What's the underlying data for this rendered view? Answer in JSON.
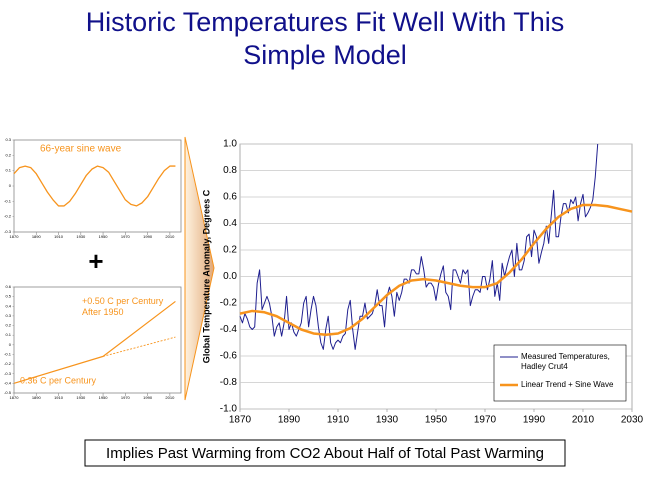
{
  "title": "Historic Temperatures Fit Well With This Simple Model",
  "plus": "+",
  "footer": "Implies Past Warming from CO2 About Half of Total Past Warming",
  "chart_data": [
    {
      "type": "line",
      "annotations": [
        "66-year sine wave"
      ],
      "xlim": [
        1870,
        2020
      ],
      "xticks": [
        1870,
        1890,
        1910,
        1930,
        1950,
        1970,
        1990,
        2010
      ],
      "ylim": [
        -0.3,
        0.3
      ],
      "yticks": [
        0.3,
        0.2,
        0.1,
        0,
        -0.1,
        -0.2,
        -0.3
      ],
      "series": [
        {
          "color": "#f7941d",
          "x": [
            1870,
            1875,
            1880,
            1885,
            1890,
            1895,
            1900,
            1905,
            1910,
            1915,
            1920,
            1925,
            1930,
            1935,
            1940,
            1945,
            1950,
            1955,
            1960,
            1965,
            1970,
            1975,
            1980,
            1985,
            1990,
            1995,
            2000,
            2005,
            2010,
            2015
          ],
          "values": [
            0.08,
            0.12,
            0.13,
            0.12,
            0.08,
            0.02,
            -0.04,
            -0.09,
            -0.13,
            -0.13,
            -0.1,
            -0.05,
            0.01,
            0.07,
            0.11,
            0.13,
            0.12,
            0.09,
            0.03,
            -0.03,
            -0.09,
            -0.12,
            -0.13,
            -0.11,
            -0.07,
            -0.01,
            0.05,
            0.1,
            0.13,
            0.13
          ]
        }
      ]
    },
    {
      "type": "line",
      "annotations": [
        "+0.50 C per Century After 1950",
        "0.36 C per Century"
      ],
      "xlim": [
        1870,
        2020
      ],
      "xticks": [
        1870,
        1890,
        1910,
        1930,
        1950,
        1970,
        1990,
        2010
      ],
      "ylim": [
        -0.5,
        0.6
      ],
      "yticks": [
        0.6,
        0.5,
        0.4,
        0.3,
        0.2,
        0.1,
        0,
        -0.1,
        -0.2,
        -0.3,
        -0.4,
        -0.5
      ],
      "series": [
        {
          "color": "#f7941d",
          "x": [
            1870,
            1950,
            2015
          ],
          "values": [
            -0.4,
            -0.12,
            0.45
          ]
        },
        {
          "color": "#f7941d",
          "line_style": "dashed",
          "x": [
            1950,
            2015
          ],
          "values": [
            -0.12,
            0.08
          ]
        }
      ]
    },
    {
      "type": "line",
      "ylabel": "Global Temperature Anomaly, Degrees C",
      "grid": true,
      "legend": "lower right",
      "xlim": [
        1870,
        2030
      ],
      "xticks": [
        1870,
        1890,
        1910,
        1930,
        1950,
        1970,
        1990,
        2010,
        2030
      ],
      "ylim": [
        -1,
        1
      ],
      "yticks": [
        {
          "value": 1,
          "label": "1.0"
        },
        0.8,
        0.6,
        0.4,
        0.2,
        {
          "value": 0,
          "label": "0.0"
        },
        -0.2,
        -0.4,
        -0.6,
        -0.8,
        {
          "value": -1,
          "label": "-1.0"
        }
      ],
      "series": [
        {
          "name": "Measured Temperatures, Hadley Crut4",
          "color": "#1f1f8f",
          "x": [
            1870,
            1871,
            1872,
            1873,
            1874,
            1875,
            1876,
            1877,
            1878,
            1879,
            1880,
            1881,
            1882,
            1883,
            1884,
            1885,
            1886,
            1887,
            1888,
            1889,
            1890,
            1891,
            1892,
            1893,
            1894,
            1895,
            1896,
            1897,
            1898,
            1899,
            1900,
            1901,
            1902,
            1903,
            1904,
            1905,
            1906,
            1907,
            1908,
            1909,
            1910,
            1911,
            1912,
            1913,
            1914,
            1915,
            1916,
            1917,
            1918,
            1919,
            1920,
            1921,
            1922,
            1923,
            1924,
            1925,
            1926,
            1927,
            1928,
            1929,
            1930,
            1931,
            1932,
            1933,
            1934,
            1935,
            1936,
            1937,
            1938,
            1939,
            1940,
            1941,
            1942,
            1943,
            1944,
            1945,
            1946,
            1947,
            1948,
            1949,
            1950,
            1951,
            1952,
            1953,
            1954,
            1955,
            1956,
            1957,
            1958,
            1959,
            1960,
            1961,
            1962,
            1963,
            1964,
            1965,
            1966,
            1967,
            1968,
            1969,
            1970,
            1971,
            1972,
            1973,
            1974,
            1975,
            1976,
            1977,
            1978,
            1979,
            1980,
            1981,
            1982,
            1983,
            1984,
            1985,
            1986,
            1987,
            1988,
            1989,
            1990,
            1991,
            1992,
            1993,
            1994,
            1995,
            1996,
            1997,
            1998,
            1999,
            2000,
            2001,
            2002,
            2003,
            2004,
            2005,
            2006,
            2007,
            2008,
            2009,
            2010,
            2011,
            2012,
            2013,
            2014,
            2015,
            2016
          ],
          "values": [
            -0.3,
            -0.35,
            -0.28,
            -0.32,
            -0.38,
            -0.4,
            -0.38,
            -0.05,
            0.05,
            -0.25,
            -0.2,
            -0.15,
            -0.2,
            -0.3,
            -0.45,
            -0.38,
            -0.35,
            -0.45,
            -0.35,
            -0.15,
            -0.4,
            -0.35,
            -0.42,
            -0.45,
            -0.4,
            -0.35,
            -0.2,
            -0.15,
            -0.38,
            -0.25,
            -0.15,
            -0.22,
            -0.38,
            -0.5,
            -0.55,
            -0.4,
            -0.3,
            -0.5,
            -0.55,
            -0.5,
            -0.48,
            -0.5,
            -0.45,
            -0.43,
            -0.25,
            -0.18,
            -0.4,
            -0.55,
            -0.42,
            -0.3,
            -0.3,
            -0.2,
            -0.32,
            -0.3,
            -0.28,
            -0.22,
            -0.1,
            -0.22,
            -0.22,
            -0.38,
            -0.15,
            -0.08,
            -0.15,
            -0.3,
            -0.12,
            -0.18,
            -0.12,
            -0.02,
            -0.02,
            -0.05,
            0.05,
            0.05,
            0.02,
            0.02,
            0.15,
            0.05,
            -0.08,
            -0.05,
            -0.05,
            -0.08,
            -0.18,
            -0.06,
            0.02,
            0.08,
            -0.12,
            -0.15,
            -0.25,
            0.05,
            0.05,
            0,
            -0.05,
            0.05,
            0.02,
            0.05,
            -0.22,
            -0.15,
            -0.1,
            -0.1,
            -0.12,
            0,
            0,
            -0.1,
            -0.02,
            0.12,
            -0.15,
            -0.05,
            -0.18,
            0.1,
            0,
            0.08,
            0.15,
            0.2,
            0,
            0.25,
            0.05,
            0.05,
            0.12,
            0.3,
            0.32,
            0.15,
            0.35,
            0.3,
            0.1,
            0.18,
            0.25,
            0.38,
            0.25,
            0.45,
            0.65,
            0.3,
            0.3,
            0.45,
            0.55,
            0.55,
            0.48,
            0.58,
            0.55,
            0.6,
            0.42,
            0.55,
            0.62,
            0.45,
            0.48,
            0.52,
            0.58,
            0.75,
            1
          ]
        },
        {
          "name": "Linear Trend + Sine Wave",
          "color": "#f7941d",
          "x": [
            1870,
            1875,
            1880,
            1885,
            1890,
            1895,
            1900,
            1905,
            1910,
            1915,
            1920,
            1925,
            1930,
            1935,
            1940,
            1945,
            1950,
            1955,
            1960,
            1965,
            1970,
            1975,
            1980,
            1985,
            1990,
            1995,
            2000,
            2005,
            2010,
            2015,
            2020,
            2025,
            2030
          ],
          "values": [
            -0.28,
            -0.26,
            -0.27,
            -0.3,
            -0.35,
            -0.4,
            -0.43,
            -0.44,
            -0.43,
            -0.39,
            -0.32,
            -0.23,
            -0.14,
            -0.07,
            -0.03,
            -0.02,
            -0.03,
            -0.05,
            -0.07,
            -0.08,
            -0.08,
            -0.05,
            0.03,
            0.13,
            0.25,
            0.36,
            0.45,
            0.51,
            0.54,
            0.54,
            0.53,
            0.51,
            0.49
          ]
        }
      ]
    }
  ]
}
